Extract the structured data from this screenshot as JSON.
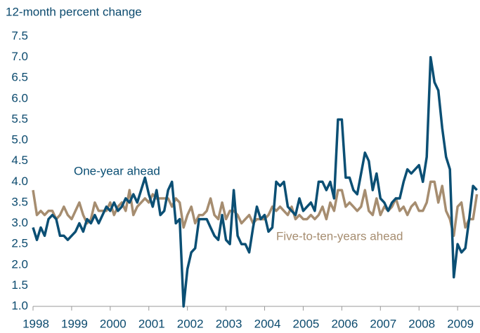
{
  "chart_data": {
    "type": "line",
    "title": "12-month percent change",
    "annotations": [
      "One-year ahead",
      "Five-to-ten-years ahead"
    ],
    "x": [
      1998.0,
      1998.1,
      1998.2,
      1998.3,
      1998.4,
      1998.5,
      1998.6,
      1998.7,
      1998.8,
      1998.9,
      1999.0,
      1999.1,
      1999.2,
      1999.3,
      1999.4,
      1999.5,
      1999.6,
      1999.7,
      1999.8,
      1999.9,
      2000.0,
      2000.1,
      2000.2,
      2000.3,
      2000.4,
      2000.5,
      2000.6,
      2000.7,
      2000.8,
      2000.9,
      2001.0,
      2001.1,
      2001.2,
      2001.3,
      2001.4,
      2001.5,
      2001.6,
      2001.7,
      2001.8,
      2001.9,
      2002.0,
      2002.1,
      2002.2,
      2002.3,
      2002.4,
      2002.5,
      2002.6,
      2002.7,
      2002.8,
      2002.9,
      2003.0,
      2003.1,
      2003.2,
      2003.3,
      2003.4,
      2003.5,
      2003.6,
      2003.7,
      2003.8,
      2003.9,
      2004.0,
      2004.1,
      2004.2,
      2004.3,
      2004.4,
      2004.5,
      2004.6,
      2004.7,
      2004.8,
      2004.9,
      2005.0,
      2005.1,
      2005.2,
      2005.3,
      2005.4,
      2005.5,
      2005.6,
      2005.7,
      2005.8,
      2005.9,
      2006.0,
      2006.1,
      2006.2,
      2006.3,
      2006.4,
      2006.5,
      2006.6,
      2006.7,
      2006.8,
      2006.9,
      2007.0,
      2007.1,
      2007.2,
      2007.3,
      2007.4,
      2007.5,
      2007.6,
      2007.7,
      2007.8,
      2007.9,
      2008.0,
      2008.1,
      2008.2,
      2008.3,
      2008.4,
      2008.5,
      2008.6,
      2008.7,
      2008.8,
      2008.9,
      2009.0,
      2009.1,
      2009.2,
      2009.3,
      2009.4,
      2009.5
    ],
    "series": [
      {
        "name": "One-year ahead",
        "color": "#0b4f74",
        "values": [
          2.9,
          2.6,
          2.9,
          2.7,
          3.1,
          3.2,
          3.1,
          2.7,
          2.7,
          2.6,
          2.7,
          2.8,
          3.0,
          2.8,
          3.1,
          3.0,
          3.2,
          3.0,
          3.2,
          3.4,
          3.3,
          3.5,
          3.3,
          3.4,
          3.6,
          3.5,
          3.7,
          3.5,
          3.8,
          4.1,
          3.7,
          3.4,
          3.8,
          3.2,
          3.3,
          3.8,
          4.0,
          3.0,
          3.1,
          1.0,
          1.9,
          2.3,
          2.4,
          3.1,
          3.1,
          3.1,
          2.9,
          2.7,
          2.6,
          3.2,
          2.6,
          2.5,
          3.8,
          2.7,
          2.5,
          2.5,
          2.3,
          2.9,
          3.4,
          3.1,
          3.2,
          2.8,
          2.9,
          4.0,
          3.9,
          4.0,
          3.4,
          3.3,
          3.2,
          3.6,
          3.3,
          3.4,
          3.5,
          3.3,
          4.0,
          4.0,
          3.8,
          4.0,
          3.6,
          5.5,
          5.5,
          4.1,
          4.1,
          3.8,
          3.7,
          4.2,
          4.7,
          4.5,
          3.8,
          4.2,
          3.6,
          3.5,
          3.3,
          3.5,
          3.6,
          3.6,
          4.0,
          4.3,
          4.2,
          4.3,
          4.4,
          4.0,
          4.6,
          7.0,
          6.4,
          6.2,
          5.3,
          4.6,
          4.3,
          1.7,
          2.5,
          2.3,
          2.4,
          3.1,
          3.9,
          3.8
        ]
      },
      {
        "name": "Five-to-ten-years ahead",
        "color": "#a68d70",
        "values": [
          3.8,
          3.2,
          3.3,
          3.2,
          3.3,
          3.3,
          3.1,
          3.2,
          3.4,
          3.2,
          3.1,
          3.3,
          3.5,
          3.2,
          3.0,
          3.1,
          3.5,
          3.3,
          3.3,
          3.3,
          3.5,
          3.2,
          3.4,
          3.5,
          3.3,
          3.8,
          3.2,
          3.4,
          3.5,
          3.6,
          3.5,
          3.7,
          3.6,
          3.6,
          3.6,
          3.6,
          3.4,
          3.6,
          3.5,
          2.9,
          3.2,
          3.4,
          3.0,
          3.2,
          3.2,
          3.3,
          3.6,
          3.2,
          3.1,
          3.5,
          3.1,
          3.3,
          3.3,
          3.2,
          3.0,
          3.1,
          3.2,
          3.0,
          3.1,
          3.1,
          3.1,
          3.2,
          3.4,
          3.3,
          3.4,
          3.3,
          3.2,
          3.4,
          3.1,
          3.2,
          3.1,
          3.1,
          3.2,
          3.1,
          3.2,
          3.4,
          3.1,
          3.5,
          3.3,
          3.8,
          3.8,
          3.4,
          3.5,
          3.4,
          3.3,
          3.4,
          3.8,
          3.3,
          3.2,
          3.6,
          3.2,
          3.4,
          3.3,
          3.4,
          3.6,
          3.3,
          3.4,
          3.2,
          3.4,
          3.5,
          3.3,
          3.3,
          3.5,
          4.0,
          4.0,
          3.5,
          3.9,
          3.3,
          3.1,
          2.7,
          3.4,
          3.5,
          2.9,
          3.1,
          3.1,
          3.7
        ]
      }
    ],
    "xlim": [
      1998,
      2009.58
    ],
    "xticks": [
      1998,
      1999,
      2000,
      2001,
      2002,
      2003,
      2004,
      2005,
      2006,
      2007,
      2008,
      2009
    ],
    "ylim": [
      1.0,
      7.5
    ],
    "yticks": [
      {
        "value": 1.0,
        "label": "1.0"
      },
      {
        "value": 1.5,
        "label": "1.5"
      },
      {
        "value": 2.0,
        "label": "2.0"
      },
      {
        "value": 2.5,
        "label": "2.5"
      },
      {
        "value": 3.0,
        "label": "3.0"
      },
      {
        "value": 3.5,
        "label": "3.5"
      },
      {
        "value": 4.0,
        "label": "4.0"
      },
      {
        "value": 4.5,
        "label": "4.5"
      },
      {
        "value": 5.0,
        "label": "5.0"
      },
      {
        "value": 5.5,
        "label": "5.5"
      },
      {
        "value": 6.0,
        "label": "6.0"
      },
      {
        "value": 6.5,
        "label": "6.5"
      },
      {
        "value": 7.0,
        "label": "7.0"
      },
      {
        "value": 7.5,
        "label": "7.5"
      }
    ],
    "grid": false
  }
}
